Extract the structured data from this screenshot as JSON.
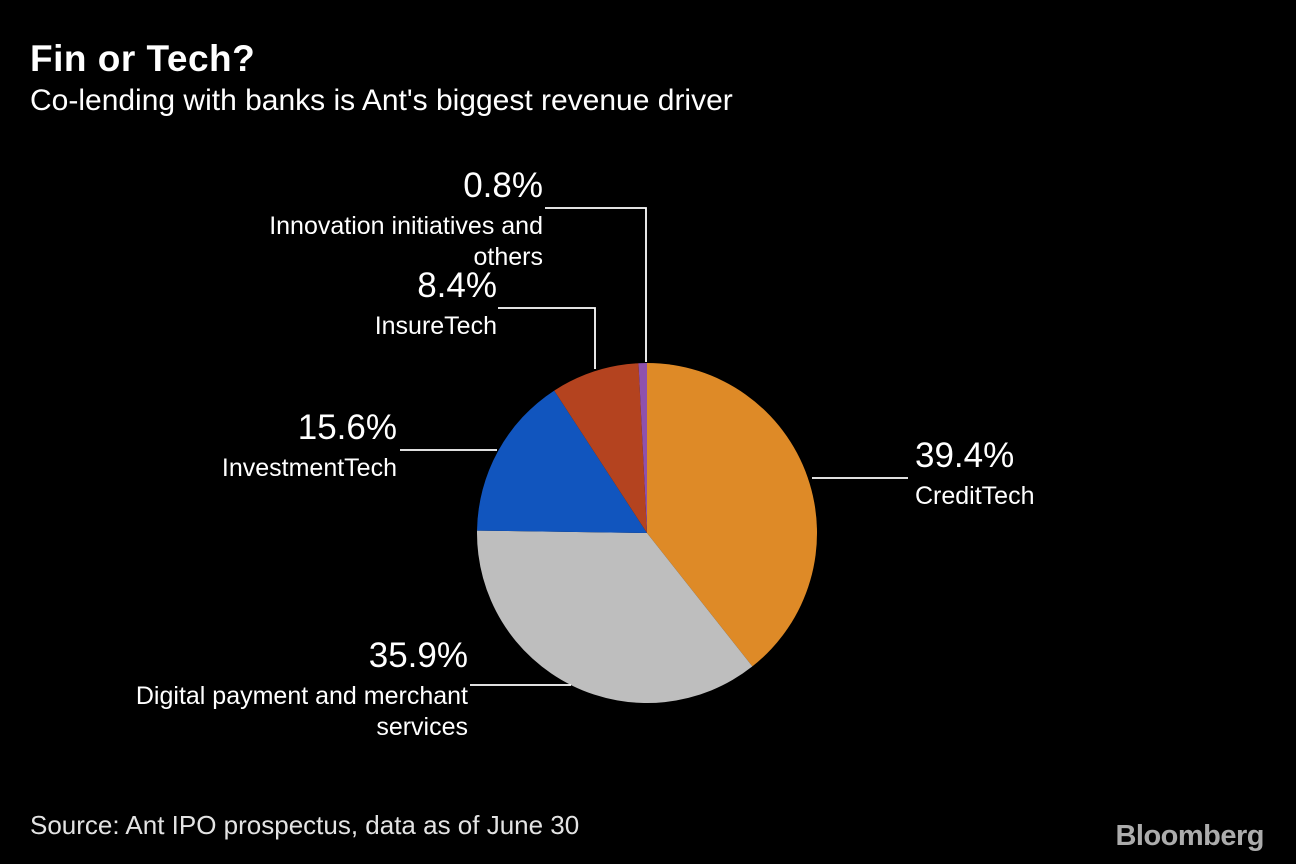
{
  "header": {
    "title": "Fin or Tech?",
    "subtitle": "Co-lending with banks is Ant's biggest revenue driver"
  },
  "footer": {
    "source": "Source: Ant IPO prospectus, data as of June 30",
    "brand": "Bloomberg"
  },
  "chart_data": {
    "type": "pie",
    "title": "Fin or Tech?",
    "subtitle": "Co-lending with banks is Ant's biggest revenue driver",
    "unit": "%",
    "start_angle": "12 o'clock",
    "direction": "clockwise",
    "background": "#000000",
    "label_color": "#ffffff",
    "slices": [
      {
        "label": "CreditTech",
        "value": 39.4,
        "pct": "39.4%",
        "color": "#de8a27"
      },
      {
        "label": "Digital payment and merchant services",
        "value": 35.9,
        "pct": "35.9%",
        "color": "#bebebe"
      },
      {
        "label": "InvestmentTech",
        "value": 15.6,
        "pct": "15.6%",
        "color": "#1155be"
      },
      {
        "label": "InsureTech",
        "value": 8.4,
        "pct": "8.4%",
        "color": "#b4431f"
      },
      {
        "label": "Innovation initiatives and others",
        "value": 0.8,
        "pct": "0.8%",
        "color": "#8f51ac"
      }
    ]
  }
}
